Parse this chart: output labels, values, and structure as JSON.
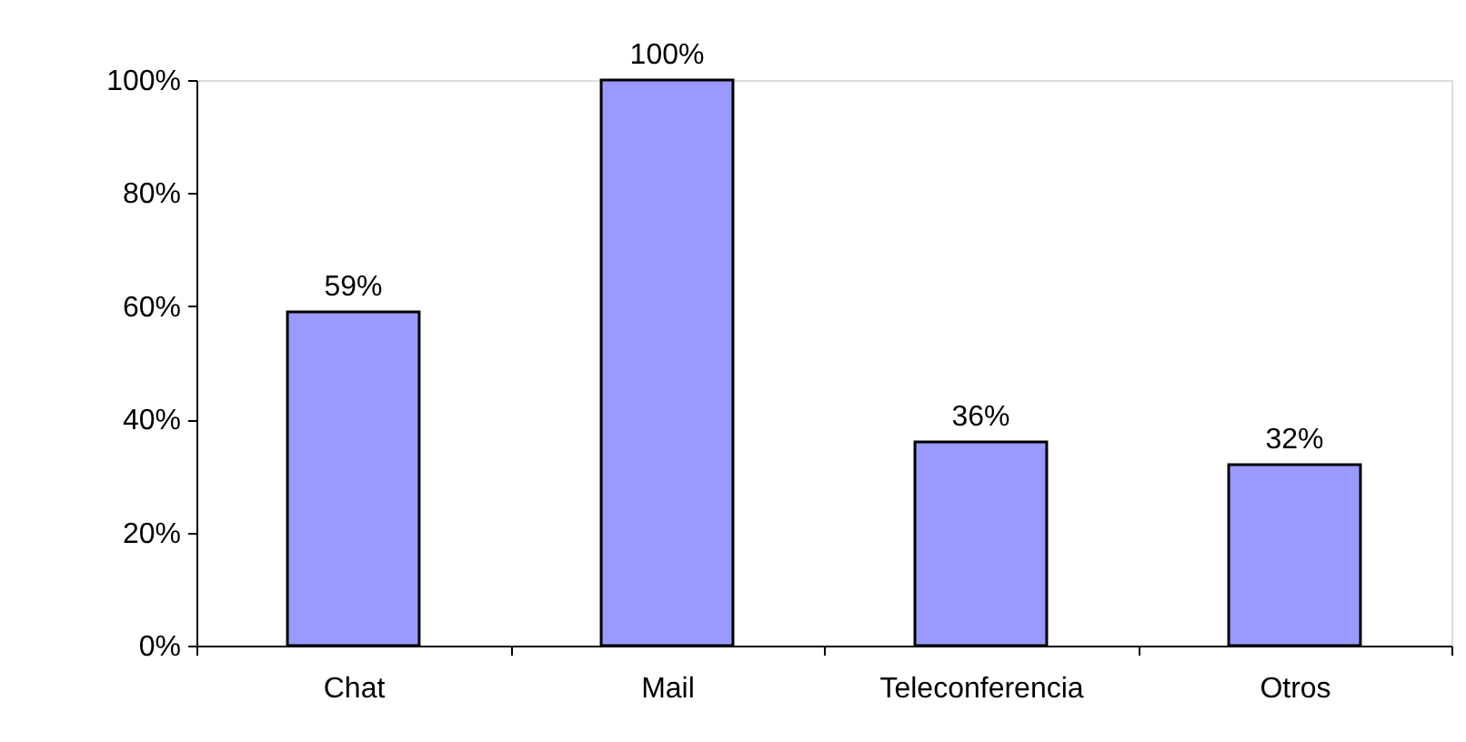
{
  "chart_data": {
    "type": "bar",
    "categories": [
      "Chat",
      "Mail",
      "Teleconferencia",
      "Otros"
    ],
    "values": [
      59,
      100,
      36,
      32
    ],
    "color": "#9999ff",
    "value_labels": [
      "59%",
      "100%",
      "36%",
      "32%"
    ],
    "ylim": [
      0,
      100
    ],
    "yticks": [
      {
        "value": 0,
        "label": "0%"
      },
      {
        "value": 20,
        "label": "20%"
      },
      {
        "value": 40,
        "label": "40%"
      },
      {
        "value": 60,
        "label": "60%"
      },
      {
        "value": 80,
        "label": "80%"
      },
      {
        "value": 100,
        "label": "100%"
      }
    ],
    "grid": false
  }
}
